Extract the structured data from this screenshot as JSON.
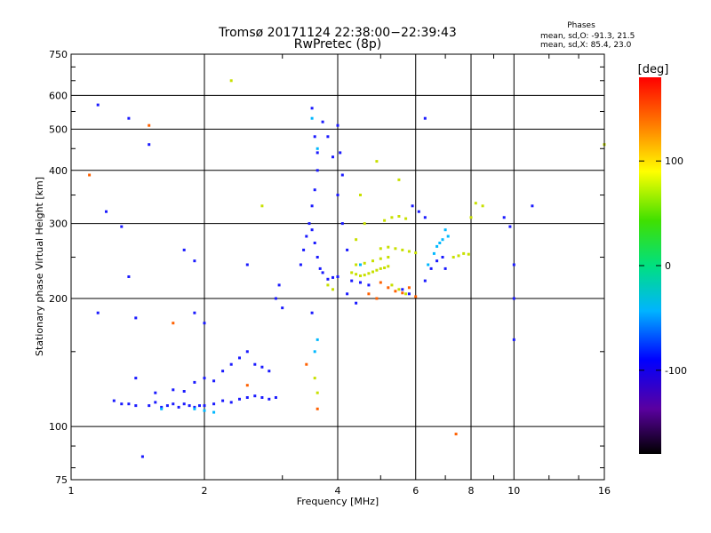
{
  "chart_data": {
    "type": "scatter",
    "title": "Tromsø 20171124 22:38:00−22:39:43",
    "subtitle": "RwPretec (8p)",
    "stats": {
      "heading": "Phases",
      "line_o": "mean, sd,O: -91.3, 21.5",
      "line_x": "mean, sd,X:  85.4, 23.0"
    },
    "xlabel": "Frequency [MHz]",
    "ylabel": "Stationary phase Virtual Height [km]",
    "x_scale": "log",
    "y_scale": "log",
    "xlim": [
      1,
      16
    ],
    "ylim": [
      75,
      750
    ],
    "x_ticks": [
      1,
      2,
      4,
      6,
      8,
      10,
      16
    ],
    "y_ticks": [
      75,
      100,
      200,
      300,
      400,
      500,
      600,
      750
    ],
    "grid": true,
    "colorbar": {
      "label": "[deg]",
      "range": [
        -180,
        180
      ],
      "ticks": [
        100,
        0,
        -100
      ]
    },
    "series": [
      {
        "points": [
          [
            1.25,
            115
          ],
          [
            1.3,
            113
          ],
          [
            1.35,
            113
          ],
          [
            1.4,
            112
          ],
          [
            1.5,
            112
          ],
          [
            1.55,
            114
          ],
          [
            1.6,
            111
          ],
          [
            1.65,
            112
          ],
          [
            1.7,
            113
          ],
          [
            1.75,
            111
          ],
          [
            1.8,
            113
          ],
          [
            1.85,
            112
          ],
          [
            1.9,
            111
          ],
          [
            1.95,
            112
          ],
          [
            2.0,
            112
          ],
          [
            2.1,
            113
          ],
          [
            2.2,
            115
          ],
          [
            2.3,
            114
          ],
          [
            2.4,
            116
          ],
          [
            2.5,
            117
          ],
          [
            2.6,
            118
          ],
          [
            2.7,
            117
          ],
          [
            2.8,
            116
          ],
          [
            2.9,
            117
          ],
          [
            1.55,
            120
          ],
          [
            1.7,
            122
          ],
          [
            1.8,
            121
          ],
          [
            1.9,
            127
          ],
          [
            2.0,
            130
          ],
          [
            2.1,
            128
          ],
          [
            2.2,
            135
          ],
          [
            2.3,
            140
          ],
          [
            2.4,
            145
          ],
          [
            2.5,
            150
          ],
          [
            2.6,
            140
          ],
          [
            2.7,
            138
          ],
          [
            2.8,
            135
          ],
          [
            3.3,
            240
          ],
          [
            3.35,
            260
          ],
          [
            3.4,
            280
          ],
          [
            3.45,
            300
          ],
          [
            3.5,
            290
          ],
          [
            3.55,
            270
          ],
          [
            3.6,
            250
          ],
          [
            3.65,
            235
          ],
          [
            3.5,
            330
          ],
          [
            3.55,
            360
          ],
          [
            3.6,
            400
          ],
          [
            3.6,
            440
          ],
          [
            3.55,
            480
          ],
          [
            3.5,
            560
          ],
          [
            3.7,
            520
          ],
          [
            3.8,
            480
          ],
          [
            3.9,
            430
          ],
          [
            4.0,
            510
          ],
          [
            4.05,
            440
          ],
          [
            4.1,
            390
          ],
          [
            4.0,
            350
          ],
          [
            4.1,
            300
          ],
          [
            4.2,
            260
          ],
          [
            4.0,
            225
          ],
          [
            3.7,
            230
          ],
          [
            3.8,
            222
          ],
          [
            3.9,
            224
          ],
          [
            4.3,
            220
          ],
          [
            4.5,
            218
          ],
          [
            4.7,
            215
          ],
          [
            4.2,
            205
          ],
          [
            4.4,
            195
          ],
          [
            5.6,
            210
          ],
          [
            5.8,
            205
          ],
          [
            6.3,
            220
          ],
          [
            6.5,
            235
          ],
          [
            6.7,
            245
          ],
          [
            6.9,
            250
          ],
          [
            7.0,
            235
          ],
          [
            2.9,
            200
          ],
          [
            3.0,
            190
          ],
          [
            2.95,
            215
          ],
          [
            5.9,
            330
          ],
          [
            6.1,
            320
          ],
          [
            6.3,
            310
          ],
          [
            9.5,
            310
          ],
          [
            9.8,
            295
          ],
          [
            10.0,
            240
          ],
          [
            10.0,
            200
          ],
          [
            10.0,
            160
          ],
          [
            1.15,
            570
          ],
          [
            1.35,
            530
          ],
          [
            1.5,
            460
          ],
          [
            1.2,
            320
          ],
          [
            1.3,
            295
          ],
          [
            1.8,
            260
          ],
          [
            1.9,
            245
          ],
          [
            2.5,
            240
          ],
          [
            1.35,
            225
          ],
          [
            1.15,
            185
          ],
          [
            1.4,
            180
          ],
          [
            1.9,
            185
          ],
          [
            2.0,
            175
          ],
          [
            1.4,
            130
          ],
          [
            1.45,
            85
          ],
          [
            3.5,
            185
          ],
          [
            6.3,
            530
          ],
          [
            11.0,
            330
          ]
        ]
      },
      {
        "points": [
          [
            4.3,
            230
          ],
          [
            4.4,
            228
          ],
          [
            4.5,
            226
          ],
          [
            4.6,
            227
          ],
          [
            4.7,
            229
          ],
          [
            4.8,
            231
          ],
          [
            4.9,
            233
          ],
          [
            5.0,
            235
          ],
          [
            5.1,
            236
          ],
          [
            5.2,
            238
          ],
          [
            4.4,
            240
          ],
          [
            4.6,
            242
          ],
          [
            4.8,
            245
          ],
          [
            5.0,
            248
          ],
          [
            5.2,
            250
          ],
          [
            5.0,
            262
          ],
          [
            5.2,
            264
          ],
          [
            5.4,
            262
          ],
          [
            5.6,
            260
          ],
          [
            5.8,
            258
          ],
          [
            6.0,
            256
          ],
          [
            7.3,
            250
          ],
          [
            7.5,
            252
          ],
          [
            7.7,
            255
          ],
          [
            7.9,
            254
          ],
          [
            5.1,
            305
          ],
          [
            5.3,
            310
          ],
          [
            5.5,
            312
          ],
          [
            5.7,
            308
          ],
          [
            4.5,
            350
          ],
          [
            4.9,
            420
          ],
          [
            5.5,
            380
          ],
          [
            4.6,
            300
          ],
          [
            8.2,
            335
          ],
          [
            8.5,
            330
          ],
          [
            3.8,
            215
          ],
          [
            3.9,
            210
          ],
          [
            5.3,
            215
          ],
          [
            5.5,
            210
          ],
          [
            5.7,
            205
          ],
          [
            3.55,
            130
          ],
          [
            3.6,
            120
          ],
          [
            2.3,
            650
          ],
          [
            16.0,
            460
          ],
          [
            2.7,
            330
          ],
          [
            4.4,
            275
          ],
          [
            8.0,
            310
          ]
        ]
      },
      {
        "points": [
          [
            5.0,
            218
          ],
          [
            5.2,
            212
          ],
          [
            5.4,
            208
          ],
          [
            5.6,
            206
          ],
          [
            5.8,
            212
          ],
          [
            6.0,
            202
          ],
          [
            4.7,
            205
          ],
          [
            4.9,
            200
          ],
          [
            2.5,
            125
          ],
          [
            7.4,
            96
          ],
          [
            1.5,
            510
          ],
          [
            3.6,
            110
          ],
          [
            1.7,
            175
          ],
          [
            1.1,
            390
          ],
          [
            3.4,
            140
          ]
        ]
      },
      {
        "points": [
          [
            3.5,
            530
          ],
          [
            3.6,
            450
          ],
          [
            6.7,
            265
          ],
          [
            6.8,
            270
          ],
          [
            6.9,
            275
          ],
          [
            7.1,
            280
          ],
          [
            6.6,
            255
          ],
          [
            6.4,
            240
          ],
          [
            3.6,
            160
          ],
          [
            3.55,
            150
          ],
          [
            1.9,
            110
          ],
          [
            2.0,
            109
          ],
          [
            2.1,
            108
          ],
          [
            1.6,
            110
          ],
          [
            4.5,
            240
          ],
          [
            7.0,
            290
          ]
        ]
      }
    ]
  }
}
